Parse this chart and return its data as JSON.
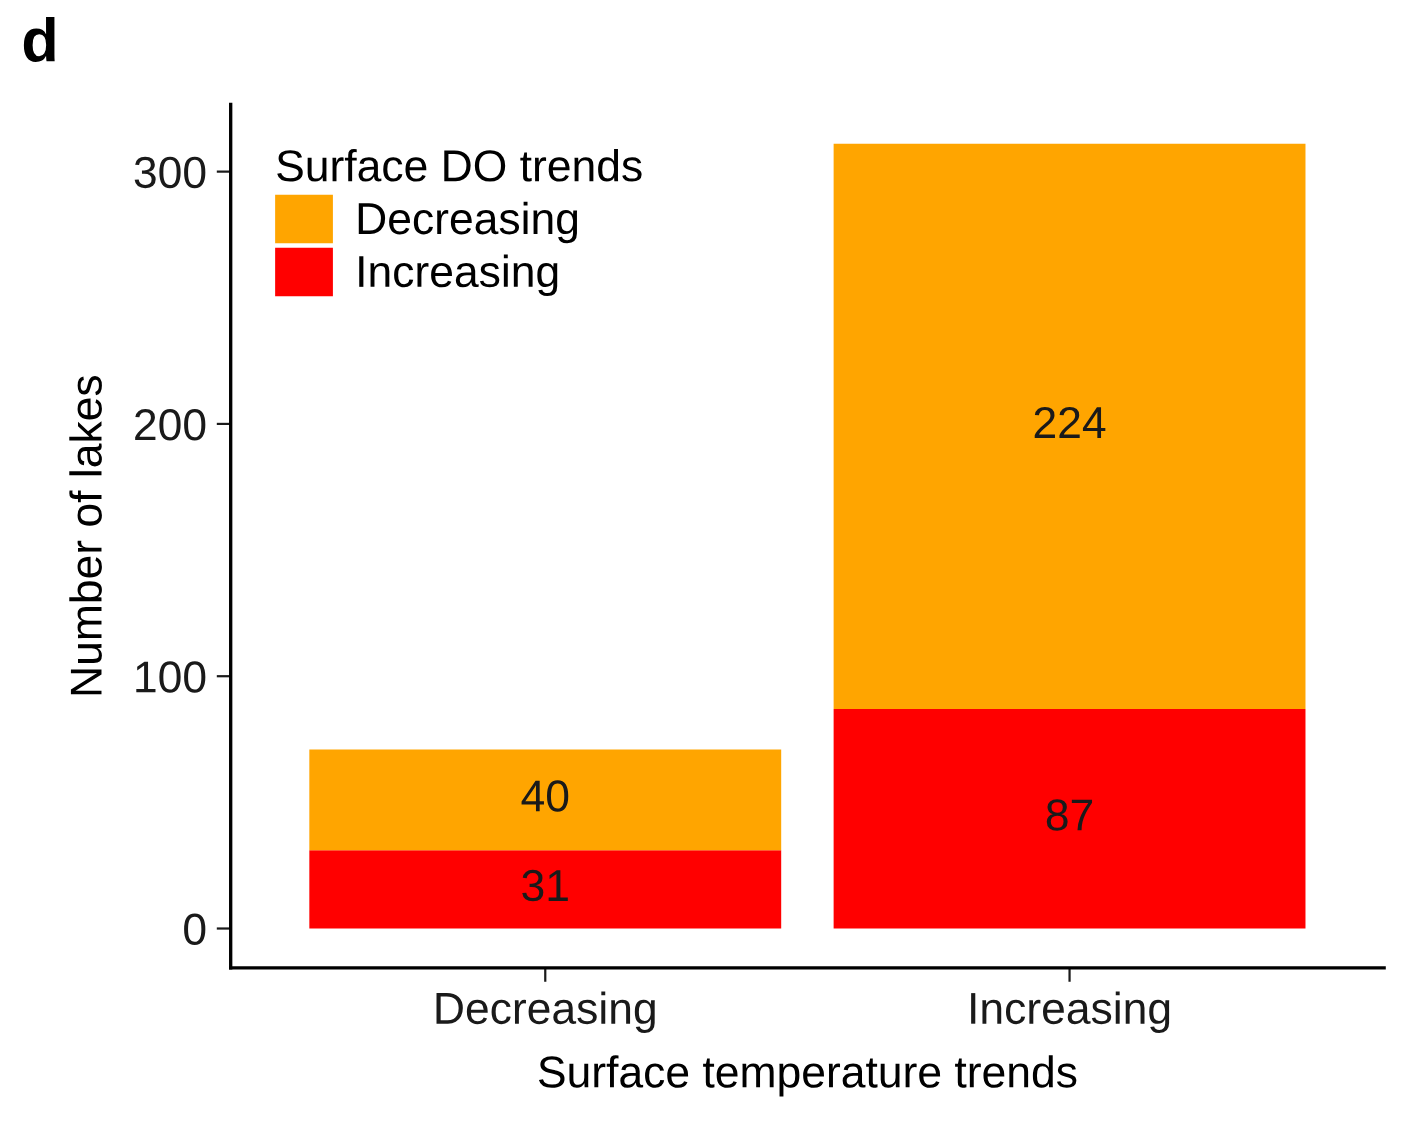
{
  "chart_data": {
    "type": "bar",
    "title": "d",
    "xlabel": "Surface temperature trends",
    "ylabel": "Number of lakes",
    "categories": [
      "Decreasing",
      "Increasing"
    ],
    "series": [
      {
        "name": "Increasing",
        "color": "#ff0000",
        "values": [
          31,
          87
        ]
      },
      {
        "name": "Decreasing",
        "color": "#ffa500",
        "values": [
          40,
          224
        ]
      }
    ],
    "stacked": true,
    "data_labels": true,
    "legend": "top left",
    "legend_title": "Surface DO trends",
    "ylim": [
      -15.6,
      326.6
    ],
    "yticks": [
      0,
      100,
      200,
      300
    ],
    "grid": false
  }
}
